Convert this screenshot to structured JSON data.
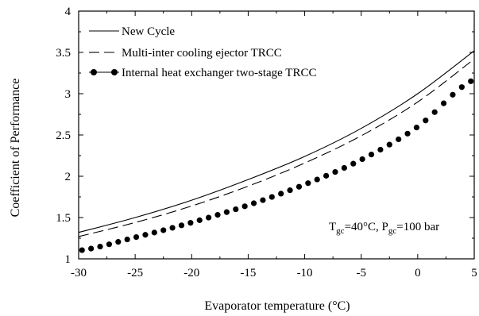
{
  "chart_data": {
    "type": "line",
    "title": "",
    "xlabel": "Evaporator temperature (°C)",
    "ylabel": "Coefficient of Performance",
    "xlim": [
      -30,
      5
    ],
    "ylim": [
      1,
      4
    ],
    "xticks": [
      -30,
      -25,
      -20,
      -15,
      -10,
      -5,
      0,
      5
    ],
    "xtick_labels": [
      "-30",
      "-25",
      "-20",
      "-15",
      "-10",
      "-5",
      "0",
      "5"
    ],
    "yticks": [
      1,
      1.5,
      2,
      2.5,
      3,
      3.5,
      4
    ],
    "ytick_labels": [
      "1",
      "1.5",
      "2",
      "2.5",
      "3",
      "3.5",
      "4"
    ],
    "grid": false,
    "legend_position": "top-left",
    "annotation": {
      "t": "T",
      "t_sub": "gc",
      "t_val": "=40°C, P",
      "p_sub": "gc",
      "p_val": "=100 bar"
    },
    "series": [
      {
        "name": "New Cycle",
        "style": "solid",
        "x": [
          -30,
          -25,
          -20,
          -15,
          -10,
          -5,
          0,
          5
        ],
        "y": [
          1.32,
          1.5,
          1.71,
          1.96,
          2.24,
          2.58,
          3.0,
          3.52
        ]
      },
      {
        "name": "Multi-inter cooling ejector TRCC",
        "style": "dashed",
        "x": [
          -30,
          -25,
          -20,
          -15,
          -10,
          -5,
          0,
          5
        ],
        "y": [
          1.27,
          1.44,
          1.64,
          1.88,
          2.16,
          2.49,
          2.9,
          3.42
        ]
      },
      {
        "name": "Internal heat exchanger two-stage TRCC",
        "style": "dotted-markers",
        "x": [
          -30,
          -25,
          -20,
          -15,
          -10,
          -5,
          0,
          5
        ],
        "y": [
          1.1,
          1.26,
          1.44,
          1.65,
          1.9,
          2.2,
          2.6,
          3.17
        ]
      }
    ]
  }
}
